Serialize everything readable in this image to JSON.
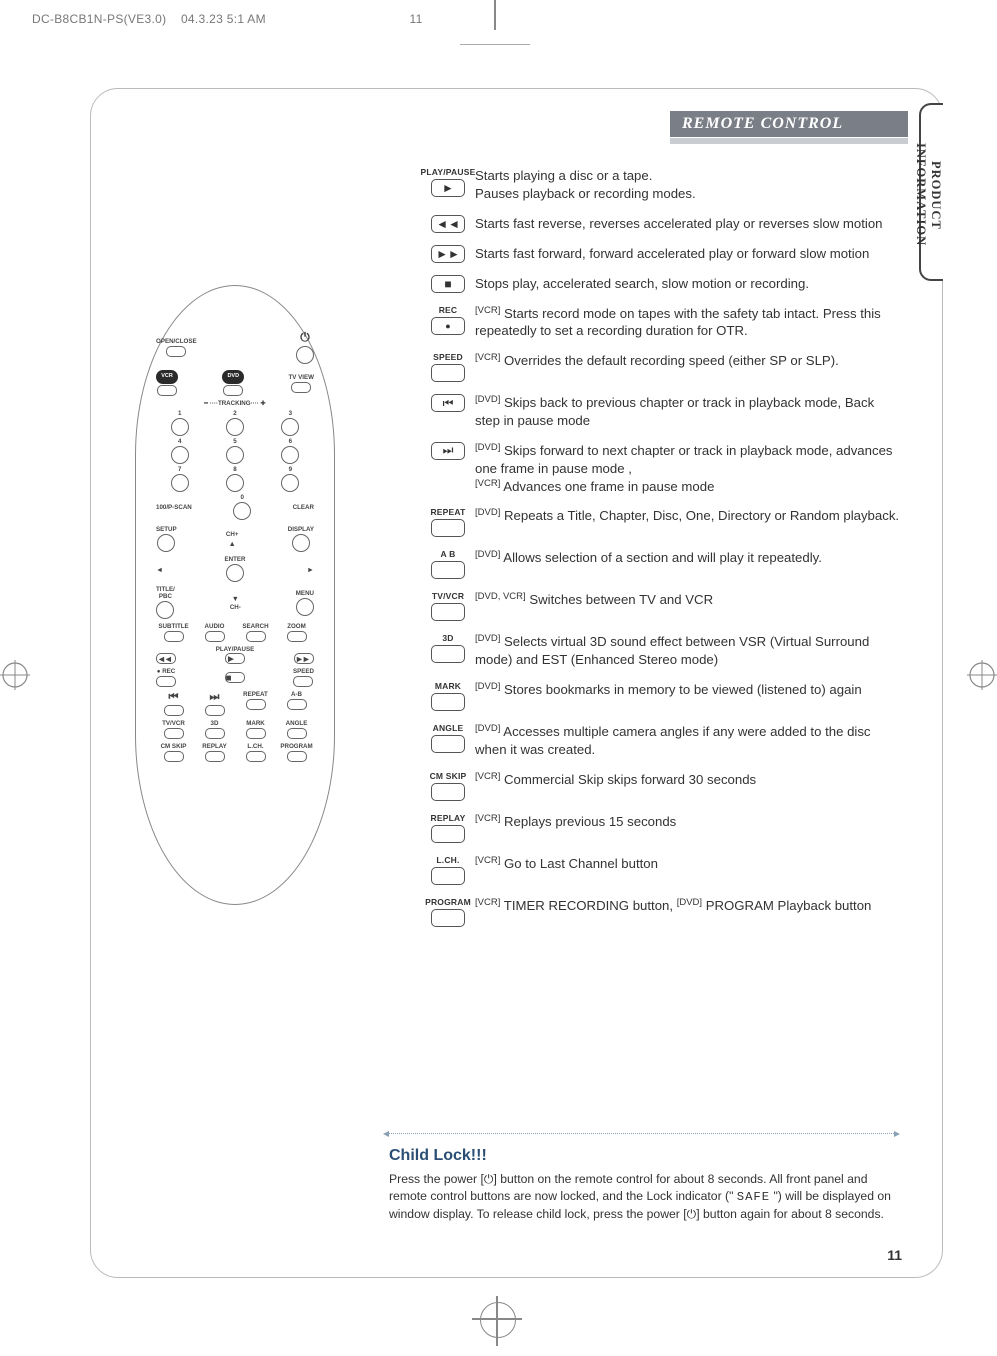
{
  "meta": {
    "doc_id": "DC-B8CB1N-PS(VE3.0)",
    "timestamp": "04.3.23 5:1 AM",
    "header_page": "11"
  },
  "chapter": {
    "title": "REMOTE CONTROL"
  },
  "side_tab": "PRODUCT INFORMATION",
  "page_number": "11",
  "remote": {
    "top": {
      "openclose": "OPEN/CLOSE"
    },
    "mode_row": {
      "vcr": "VCR",
      "dvd": "DVD",
      "tvview": "TV VIEW"
    },
    "tracking": "TRACKING",
    "numbers": [
      "1",
      "2",
      "3",
      "4",
      "5",
      "6",
      "7",
      "8",
      "9",
      "0"
    ],
    "hundred": "100/P-SCAN",
    "clear": "CLEAR",
    "setup": "SETUP",
    "chp": "CH+",
    "display": "DISPLAY",
    "enter": "ENTER",
    "title": "TITLE/",
    "pbc": "PBC",
    "menu": "MENU",
    "chm": "CH-",
    "row_sub": {
      "subtitle": "SUBTITLE",
      "audio": "AUDIO",
      "search": "SEARCH",
      "zoom": "ZOOM"
    },
    "playpause": "PLAY/PAUSE",
    "rec": "REC",
    "speed": "SPEED",
    "rep": "REPEAT",
    "ab": "A-B",
    "row_bottom1": {
      "tvvcr": "TV/VCR",
      "threeD": "3D",
      "mark": "MARK",
      "angle": "ANGLE"
    },
    "row_bottom2": {
      "cmskip": "CM SKIP",
      "replay": "REPLAY",
      "lch": "L.CH.",
      "program": "PROGRAM"
    }
  },
  "functions": [
    {
      "icon_label": "PLAY/PAUSE",
      "glyph": "play",
      "text": "Starts playing a disc or a tape.\nPauses playback or recording modes."
    },
    {
      "icon_label": "",
      "glyph": "rew",
      "text": "Starts fast reverse, reverses accelerated play or reverses slow motion"
    },
    {
      "icon_label": "",
      "glyph": "ff",
      "text": "Starts fast forward, forward accelerated play or forward slow motion"
    },
    {
      "icon_label": "",
      "glyph": "stop",
      "text": "Stops play, accelerated search, slow motion or recording."
    },
    {
      "icon_label": "REC",
      "glyph": "rec",
      "text": "[VCR] Starts record mode on tapes with the safety tab intact. Press this repeatedly to set a recording duration for OTR."
    },
    {
      "icon_label": "SPEED",
      "glyph": "",
      "text": "[VCR] Overrides the default recording speed (either SP or SLP)."
    },
    {
      "icon_label": "",
      "glyph": "prev",
      "text": "[DVD] Skips back to previous chapter or track in playback mode, Back step in pause mode"
    },
    {
      "icon_label": "",
      "glyph": "next",
      "text": "[DVD] Skips forward to next chapter or track in playback mode, advances one frame in pause mode ,\n[VCR] Advances one frame in pause mode"
    },
    {
      "icon_label": "REPEAT",
      "glyph": "",
      "text": "[DVD] Repeats a Title, Chapter, Disc, One, Directory or Random playback."
    },
    {
      "icon_label": "A B",
      "glyph": "",
      "text": "[DVD] Allows selection of a section and will play it repeatedly."
    },
    {
      "icon_label": "TV/VCR",
      "glyph": "",
      "text": "[DVD, VCR] Switches between TV and VCR"
    },
    {
      "icon_label": "3D",
      "glyph": "",
      "text": "[DVD] Selects virtual 3D sound effect between VSR (Virtual Surround mode) and EST (Enhanced Stereo mode)"
    },
    {
      "icon_label": "MARK",
      "glyph": "",
      "text": "[DVD] Stores bookmarks in memory to be viewed (listened to) again"
    },
    {
      "icon_label": "ANGLE",
      "glyph": "",
      "text": "[DVD] Accesses multiple camera angles if any were added to the disc when it was created."
    },
    {
      "icon_label": "CM SKIP",
      "glyph": "",
      "text": "[VCR] Commercial Skip skips forward 30 seconds"
    },
    {
      "icon_label": "REPLAY",
      "glyph": "",
      "text": "[VCR] Replays previous 15 seconds"
    },
    {
      "icon_label": "L.CH.",
      "glyph": "",
      "text": "[VCR] Go to Last Channel button"
    },
    {
      "icon_label": "PROGRAM",
      "glyph": "",
      "text": "[VCR] TIMER RECORDING button, [DVD] PROGRAM Playback button"
    }
  ],
  "childlock": {
    "heading": "Child Lock!!!",
    "body": "Press the power [⏻] button on the remote control for about 8 seconds. All front panel and remote control buttons are now locked, and the Lock indicator (\" SAFE \") will be displayed on window display. To release child lock, press the power [⏻] button again for about 8 seconds."
  }
}
